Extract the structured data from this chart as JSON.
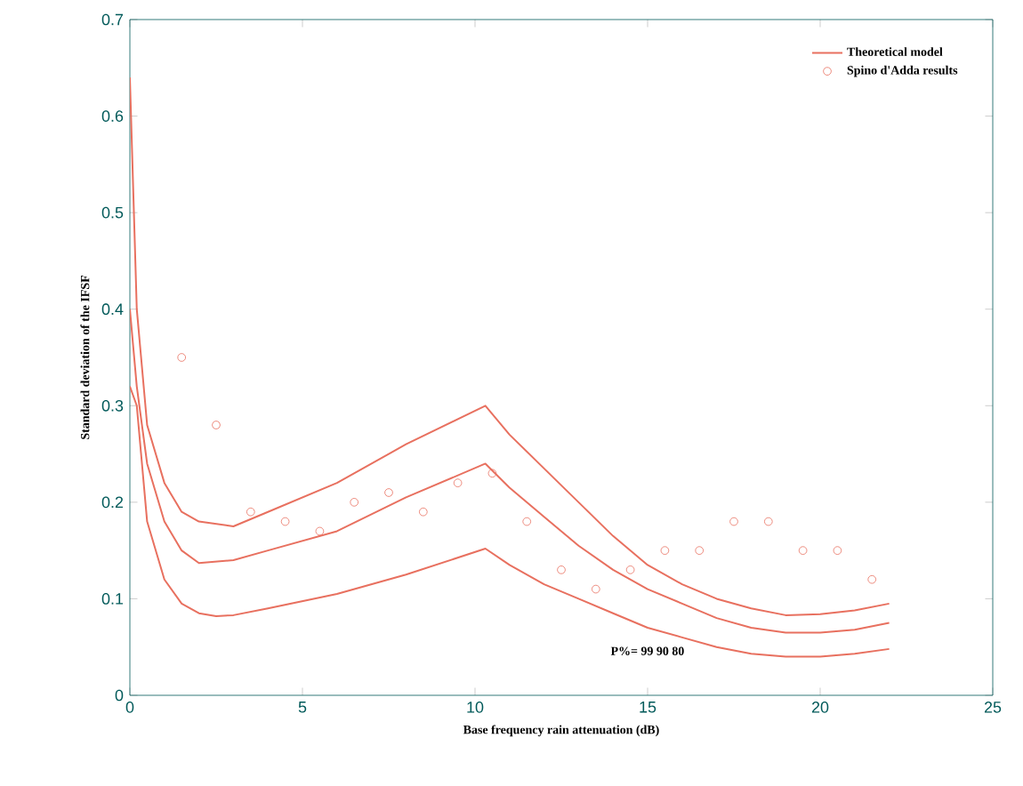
{
  "chart_data": {
    "type": "line",
    "xlabel": "Base frequency rain attenuation (dB)",
    "ylabel": "Standard deviation of the IFSF",
    "xlim": [
      0,
      25
    ],
    "ylim": [
      0,
      0.7
    ],
    "xticks": [
      0,
      5,
      10,
      15,
      20,
      25
    ],
    "yticks": [
      0,
      0.1,
      0.2,
      0.3,
      0.4,
      0.5,
      0.6,
      0.7
    ],
    "legend": "top right",
    "grid": false,
    "annotations": [
      "P%= 99 90 80"
    ],
    "series": [
      {
        "name": "Theoretical model",
        "color": "#e8705f",
        "marker": "none",
        "x": [
          0,
          0.2,
          0.5,
          1,
          1.5,
          2,
          3,
          4,
          6,
          8,
          10.3,
          11,
          12,
          13,
          14,
          15,
          16,
          17,
          18,
          19,
          20,
          21,
          22
        ],
        "values": [
          0.64,
          0.4,
          0.28,
          0.22,
          0.19,
          0.18,
          0.175,
          0.19,
          0.22,
          0.26,
          0.3,
          0.27,
          0.235,
          0.2,
          0.165,
          0.135,
          0.115,
          0.1,
          0.09,
          0.083,
          0.084,
          0.088,
          0.095
        ]
      },
      {
        "color": "#e8705f",
        "marker": "none",
        "x": [
          0,
          0.2,
          0.5,
          1,
          1.5,
          2,
          3,
          4,
          6,
          8,
          10.3,
          11,
          12,
          13,
          14,
          15,
          16,
          17,
          18,
          19,
          20,
          21,
          22
        ],
        "values": [
          0.4,
          0.32,
          0.24,
          0.18,
          0.15,
          0.137,
          0.14,
          0.15,
          0.17,
          0.205,
          0.24,
          0.215,
          0.185,
          0.155,
          0.13,
          0.11,
          0.095,
          0.08,
          0.07,
          0.065,
          0.065,
          0.068,
          0.075
        ]
      },
      {
        "color": "#e8705f",
        "marker": "none",
        "x": [
          0,
          0.2,
          0.5,
          1,
          1.5,
          2,
          2.5,
          3,
          4,
          6,
          8,
          10.3,
          11,
          12,
          13,
          14,
          15,
          16,
          17,
          18,
          19,
          20,
          21,
          22
        ],
        "values": [
          0.32,
          0.3,
          0.18,
          0.12,
          0.095,
          0.085,
          0.082,
          0.083,
          0.09,
          0.105,
          0.125,
          0.152,
          0.135,
          0.115,
          0.1,
          0.085,
          0.07,
          0.06,
          0.05,
          0.043,
          0.04,
          0.04,
          0.043,
          0.048
        ]
      },
      {
        "name": "Spino d'Adda results",
        "type": "scatter",
        "marker": "circle",
        "color": "#e8705f",
        "x": [
          1.5,
          2.5,
          3.5,
          4.5,
          5.5,
          6.5,
          7.5,
          8.5,
          9.5,
          10.5,
          11.5,
          12.5,
          13.5,
          14.5,
          15.5,
          16.5,
          17.5,
          18.5,
          19.5,
          20.5,
          21.5
        ],
        "values": [
          0.35,
          0.28,
          0.19,
          0.18,
          0.17,
          0.2,
          0.21,
          0.19,
          0.22,
          0.23,
          0.18,
          0.13,
          0.11,
          0.13,
          0.15,
          0.15,
          0.18,
          0.18,
          0.15,
          0.15,
          0.12
        ]
      }
    ]
  }
}
